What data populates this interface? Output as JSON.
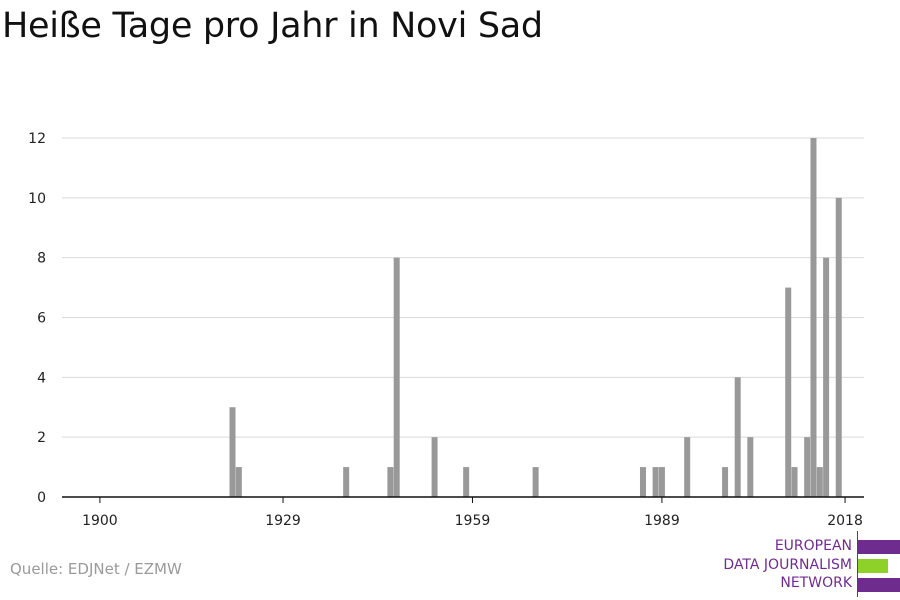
{
  "title": "Heiße Tage pro Jahr in Novi Sad",
  "source": "Quelle: EDJNet / EZMW",
  "logo": {
    "lines": [
      "EUROPEAN",
      "DATA JOURNALISM",
      "NETWORK"
    ],
    "colors": {
      "purple": "#6f2c8f",
      "green": "#8ed129"
    }
  },
  "colors": {
    "bar": "#999999",
    "grid": "#d9d9d9",
    "axis": "#111111",
    "tick_label": "#222222"
  },
  "chart_data": {
    "type": "bar",
    "title": "Heiße Tage pro Jahr in Novi Sad",
    "xlabel": "",
    "ylabel": "",
    "x_ticks": [
      1900,
      1929,
      1959,
      1989,
      2018
    ],
    "y_ticks": [
      0,
      2,
      4,
      6,
      8,
      10,
      12
    ],
    "xlim": [
      1894,
      2021
    ],
    "ylim": [
      0,
      12
    ],
    "grid": true,
    "x": [
      1921,
      1922,
      1939,
      1946,
      1947,
      1953,
      1958,
      1969,
      1986,
      1988,
      1989,
      1993,
      1999,
      2001,
      2003,
      2009,
      2010,
      2012,
      2013,
      2014,
      2015,
      2017
    ],
    "values": [
      3,
      1,
      1,
      1,
      8,
      2,
      1,
      1,
      1,
      1,
      1,
      2,
      1,
      4,
      2,
      7,
      1,
      2,
      12,
      1,
      8,
      10
    ]
  }
}
